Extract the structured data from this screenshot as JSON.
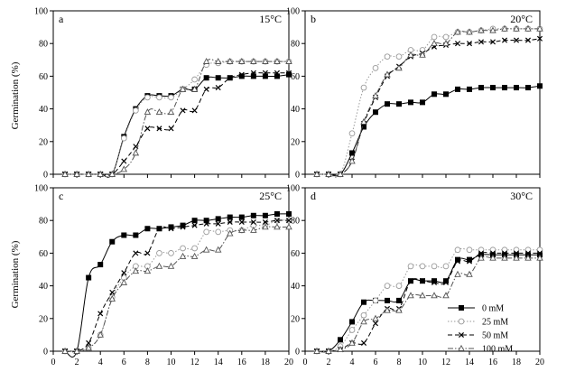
{
  "figure": {
    "ylabel": "Germination (%)"
  },
  "legend": {
    "entries": [
      {
        "label": "0 mM",
        "marker": "square-filled",
        "dash": "solid",
        "color": "#000000"
      },
      {
        "label": "25 mM",
        "marker": "circle-open",
        "dash": "dotted",
        "color": "#9a9a9a"
      },
      {
        "label": "50 mM",
        "marker": "cross",
        "dash": "dashed",
        "color": "#000000"
      },
      {
        "label": "100 mM",
        "marker": "triangle-open",
        "dash": "dashdot",
        "color": "#555555"
      }
    ]
  },
  "chart_data": [
    {
      "type": "line",
      "panel": "a",
      "annotation": "15°C",
      "xlim": [
        0,
        20
      ],
      "ylim": [
        0,
        100
      ],
      "xticks": [
        0,
        2,
        4,
        6,
        8,
        10,
        12,
        14,
        16,
        18,
        20
      ],
      "yticks": [
        0,
        20,
        40,
        60,
        80,
        100
      ],
      "x": [
        1,
        2,
        3,
        4,
        5,
        6,
        7,
        8,
        9,
        10,
        11,
        12,
        13,
        14,
        15,
        16,
        17,
        18,
        19,
        20
      ],
      "series": [
        {
          "name": "0 mM",
          "values": [
            0,
            0,
            0,
            0,
            0,
            23,
            40,
            48,
            48,
            48,
            52,
            52,
            59,
            59,
            59,
            60,
            60,
            60,
            60,
            61
          ]
        },
        {
          "name": "25 mM",
          "values": [
            0,
            0,
            0,
            0,
            0,
            22,
            39,
            47,
            47,
            47,
            52,
            58,
            67,
            68,
            69,
            69,
            69,
            69,
            69,
            69
          ]
        },
        {
          "name": "50 mM",
          "values": [
            0,
            0,
            0,
            0,
            0,
            8,
            17,
            28,
            28,
            28,
            39,
            39,
            52,
            53,
            59,
            61,
            62,
            62,
            62,
            62
          ]
        },
        {
          "name": "100 mM",
          "values": [
            0,
            0,
            0,
            0,
            0,
            3,
            13,
            38,
            38,
            38,
            52,
            52,
            69,
            69,
            69,
            69,
            69,
            69,
            69,
            69
          ]
        }
      ]
    },
    {
      "type": "line",
      "panel": "b",
      "annotation": "20°C",
      "xlim": [
        0,
        20
      ],
      "ylim": [
        0,
        100
      ],
      "xticks": [
        0,
        2,
        4,
        6,
        8,
        10,
        12,
        14,
        16,
        18,
        20
      ],
      "yticks": [
        0,
        20,
        40,
        60,
        80,
        100
      ],
      "x": [
        1,
        2,
        3,
        4,
        5,
        6,
        7,
        8,
        9,
        10,
        11,
        12,
        13,
        14,
        15,
        16,
        17,
        18,
        19,
        20
      ],
      "series": [
        {
          "name": "0 mM",
          "values": [
            0,
            0,
            0,
            13,
            29,
            38,
            43,
            43,
            44,
            44,
            49,
            49,
            52,
            52,
            53,
            53,
            53,
            53,
            53,
            54
          ]
        },
        {
          "name": "25 mM",
          "values": [
            0,
            0,
            0,
            25,
            53,
            65,
            72,
            72,
            76,
            76,
            84,
            84,
            87,
            87,
            88,
            89,
            89,
            89,
            89,
            89
          ]
        },
        {
          "name": "50 mM",
          "values": [
            0,
            0,
            0,
            8,
            31,
            47,
            60,
            66,
            72,
            74,
            78,
            79,
            80,
            80,
            81,
            81,
            82,
            82,
            82,
            83
          ]
        },
        {
          "name": "100 mM",
          "values": [
            0,
            0,
            0,
            8,
            32,
            48,
            61,
            65,
            73,
            73,
            80,
            80,
            87,
            87,
            88,
            88,
            89,
            89,
            89,
            89
          ]
        }
      ]
    },
    {
      "type": "line",
      "panel": "c",
      "annotation": "25°C",
      "xlim": [
        0,
        20
      ],
      "ylim": [
        0,
        100
      ],
      "xticks": [
        0,
        2,
        4,
        6,
        8,
        10,
        12,
        14,
        16,
        18,
        20
      ],
      "yticks": [
        0,
        20,
        40,
        60,
        80,
        100
      ],
      "x": [
        1,
        2,
        3,
        4,
        5,
        6,
        7,
        8,
        9,
        10,
        11,
        12,
        13,
        14,
        15,
        16,
        17,
        18,
        19,
        20
      ],
      "series": [
        {
          "name": "0 mM",
          "values": [
            0,
            0,
            45,
            53,
            67,
            71,
            71,
            75,
            75,
            76,
            77,
            80,
            80,
            81,
            82,
            82,
            83,
            83,
            84,
            84
          ]
        },
        {
          "name": "25 mM",
          "values": [
            0,
            0,
            2,
            10,
            33,
            45,
            52,
            52,
            60,
            60,
            63,
            63,
            73,
            73,
            74,
            74,
            77,
            77,
            80,
            80
          ]
        },
        {
          "name": "50 mM",
          "values": [
            0,
            0,
            5,
            23,
            36,
            48,
            60,
            60,
            75,
            75,
            76,
            77,
            78,
            78,
            79,
            79,
            79,
            79,
            80,
            80
          ]
        },
        {
          "name": "100 mM",
          "values": [
            0,
            0,
            2,
            10,
            32,
            42,
            49,
            49,
            52,
            52,
            58,
            58,
            62,
            62,
            72,
            74,
            74,
            76,
            76,
            76
          ]
        }
      ]
    },
    {
      "type": "line",
      "panel": "d",
      "annotation": "30°C",
      "xlim": [
        0,
        20
      ],
      "ylim": [
        0,
        100
      ],
      "xticks": [
        0,
        2,
        4,
        6,
        8,
        10,
        12,
        14,
        16,
        18,
        20
      ],
      "yticks": [
        0,
        20,
        40,
        60,
        80,
        100
      ],
      "x": [
        1,
        2,
        3,
        4,
        5,
        6,
        7,
        8,
        9,
        10,
        11,
        12,
        13,
        14,
        15,
        16,
        17,
        18,
        19,
        20
      ],
      "series": [
        {
          "name": "0 mM",
          "values": [
            0,
            0,
            7,
            18,
            30,
            31,
            31,
            31,
            43,
            43,
            43,
            43,
            56,
            56,
            59,
            59,
            59,
            59,
            59,
            59
          ]
        },
        {
          "name": "25 mM",
          "values": [
            0,
            0,
            3,
            13,
            22,
            31,
            40,
            40,
            52,
            52,
            52,
            52,
            62,
            62,
            62,
            62,
            62,
            62,
            62,
            62
          ]
        },
        {
          "name": "50 mM",
          "values": [
            0,
            0,
            1,
            5,
            5,
            17,
            26,
            26,
            43,
            43,
            42,
            42,
            55,
            55,
            60,
            60,
            60,
            60,
            60,
            60
          ]
        },
        {
          "name": "100 mM",
          "values": [
            0,
            0,
            1,
            5,
            18,
            20,
            25,
            25,
            34,
            34,
            34,
            34,
            47,
            47,
            57,
            57,
            57,
            57,
            57,
            57
          ]
        }
      ]
    }
  ]
}
